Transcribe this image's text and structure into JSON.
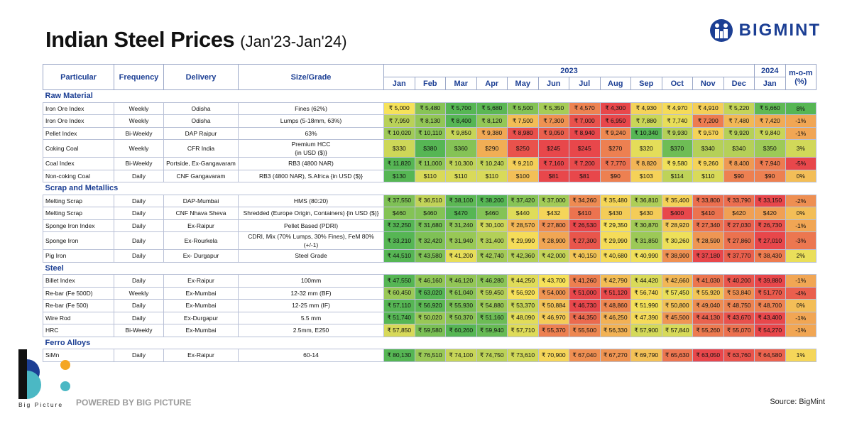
{
  "header": {
    "title": "Indian Steel Prices",
    "subtitle": "(Jan'23-Jan'24)",
    "brand": "BIGMINT"
  },
  "table": {
    "columns": [
      "Particular",
      "Frequency",
      "Delivery",
      "Size/Grade"
    ],
    "years": [
      {
        "label": "2023",
        "span": 12
      },
      {
        "label": "2024",
        "span": 1
      }
    ],
    "months": [
      "Jan",
      "Feb",
      "Mar",
      "Apr",
      "May",
      "Jun",
      "Jul",
      "Aug",
      "Sep",
      "Oct",
      "Nov",
      "Dec",
      "Jan"
    ],
    "mom_header": "m-o-m (%)",
    "sections": [
      {
        "name": "Raw Material",
        "rows": [
          {
            "particular": "Iron Ore Index",
            "frequency": "Weekly",
            "delivery": "Odisha",
            "grade": "Fines (62%)",
            "prices": [
              "₹ 5,000",
              "₹ 5,480",
              "₹ 5,700",
              "₹ 5,680",
              "₹ 5,500",
              "₹ 5,350",
              "₹ 4,570",
              "₹ 4,300",
              "₹ 4,930",
              "₹ 4,970",
              "₹ 4,910",
              "₹ 5,220",
              "₹ 5,660"
            ],
            "mom": "8%"
          },
          {
            "particular": "Iron Ore Index",
            "frequency": "Weekly",
            "delivery": "Odisha",
            "grade": "Lumps (5-18mm, 63%)",
            "prices": [
              "₹ 7,950",
              "₹ 8,130",
              "₹ 8,400",
              "₹ 8,120",
              "₹ 7,500",
              "₹ 7,300",
              "₹ 7,000",
              "₹ 6,950",
              "₹ 7,880",
              "₹ 7,740",
              "₹ 7,200",
              "₹ 7,480",
              "₹ 7,420"
            ],
            "mom": "-1%"
          },
          {
            "particular": "Pellet Index",
            "frequency": "Bi-Weekly",
            "delivery": "DAP Raipur",
            "grade": "63%",
            "prices": [
              "₹ 10,020",
              "₹ 10,110",
              "₹ 9,850",
              "₹ 9,380",
              "₹ 8,980",
              "₹ 9,050",
              "₹ 8,940",
              "₹ 9,240",
              "₹ 10,340",
              "₹ 9,930",
              "₹ 9,570",
              "₹ 9,920",
              "₹ 9,840"
            ],
            "mom": "-1%"
          },
          {
            "particular": "Coking Coal",
            "frequency": "Weekly",
            "delivery": "CFR India",
            "grade": "Premium HCC\n{in USD ($)}",
            "prices": [
              "$330",
              "$380",
              "$360",
              "$290",
              "$250",
              "$245",
              "$245",
              "$270",
              "$320",
              "$370",
              "$340",
              "$340",
              "$350"
            ],
            "mom": "3%"
          },
          {
            "particular": "Coal Index",
            "frequency": "Bi-Weekly",
            "delivery": "Portside, Ex-Gangavaram",
            "grade": "RB3 (4800 NAR)",
            "prices": [
              "₹ 11,820",
              "₹ 11,000",
              "₹ 10,300",
              "₹ 10,240",
              "₹ 9,210",
              "₹ 7,160",
              "₹ 7,200",
              "₹ 7,770",
              "₹ 8,820",
              "₹ 9,580",
              "₹ 9,260",
              "₹ 8,400",
              "₹ 7,940"
            ],
            "mom": "-5%"
          },
          {
            "particular": "Non-coking Coal",
            "frequency": "Daily",
            "delivery": "CNF Gangavaram",
            "grade": "RB3 (4800 NAR), S.Africa {in USD ($)}",
            "prices": [
              "$130",
              "$110",
              "$110",
              "$110",
              "$100",
              "$81",
              "$81",
              "$90",
              "$103",
              "$114",
              "$110",
              "$90",
              "$90"
            ],
            "mom": "0%"
          }
        ]
      },
      {
        "name": "Scrap and Metallics",
        "rows": [
          {
            "particular": "Melting Scrap",
            "frequency": "Daily",
            "delivery": "DAP-Mumbai",
            "grade": "HMS (80:20)",
            "prices": [
              "₹ 37,550",
              "₹ 36,510",
              "₹ 38,100",
              "₹ 38,200",
              "₹ 37,420",
              "₹ 37,000",
              "₹ 34,260",
              "₹ 35,480",
              "₹ 36,810",
              "₹ 35,400",
              "₹ 33,800",
              "₹ 33,790",
              "₹ 33,150"
            ],
            "mom": "-2%"
          },
          {
            "particular": "Melting Scrap",
            "frequency": "Daily",
            "delivery": "CNF Nhava Sheva",
            "grade": "Shredded (Europe Origin, Containers) {in USD ($)}",
            "prices": [
              "$460",
              "$460",
              "$470",
              "$460",
              "$440",
              "$432",
              "$410",
              "$430",
              "$430",
              "$400",
              "$410",
              "$420",
              "$420"
            ],
            "mom": "0%"
          },
          {
            "particular": "Sponge Iron Index",
            "frequency": "Daily",
            "delivery": "Ex-Raipur",
            "grade": "Pellet Based (PDRI)",
            "prices": [
              "₹ 32,250",
              "₹ 31,680",
              "₹ 31,240",
              "₹ 30,100",
              "₹ 28,570",
              "₹ 27,800",
              "₹ 26,530",
              "₹ 29,350",
              "₹ 30,870",
              "₹ 28,920",
              "₹ 27,340",
              "₹ 27,030",
              "₹ 26,730"
            ],
            "mom": "-1%"
          },
          {
            "particular": "Sponge Iron",
            "frequency": "Daily",
            "delivery": "Ex-Rourkela",
            "grade": "CDRI, Mix (70% Lumps, 30% Fines), FeM 80% (+/-1)",
            "prices": [
              "₹ 33,210",
              "₹ 32,420",
              "₹ 31,940",
              "₹ 31,400",
              "₹ 29,990",
              "₹ 28,900",
              "₹ 27,300",
              "₹ 29,990",
              "₹ 31,850",
              "₹ 30,260",
              "₹ 28,590",
              "₹ 27,860",
              "₹ 27,010"
            ],
            "mom": "-3%"
          },
          {
            "particular": "Pig Iron",
            "frequency": "Daily",
            "delivery": "Ex- Durgapur",
            "grade": "Steel Grade",
            "prices": [
              "₹ 44,510",
              "₹ 43,580",
              "₹ 41,200",
              "₹ 42,740",
              "₹ 42,360",
              "₹ 42,000",
              "₹ 40,150",
              "₹ 40,680",
              "₹ 40,990",
              "₹ 38,900",
              "₹ 37,180",
              "₹ 37,770",
              "₹ 38,430"
            ],
            "mom": "2%"
          }
        ]
      },
      {
        "name": "Steel",
        "rows": [
          {
            "particular": "Billet Index",
            "frequency": "Daily",
            "delivery": "Ex-Raipur",
            "grade": "100mm",
            "prices": [
              "₹ 47,550",
              "₹ 46,160",
              "₹ 46,120",
              "₹ 46,280",
              "₹ 44,250",
              "₹ 43,700",
              "₹ 41,260",
              "₹ 42,790",
              "₹ 44,420",
              "₹ 42,660",
              "₹ 41,030",
              "₹ 40,200",
              "₹ 39,880"
            ],
            "mom": "-1%"
          },
          {
            "particular": "Re-bar (Fe 500D)",
            "frequency": "Weekly",
            "delivery": "Ex-Mumbai",
            "grade": "12-32 mm (BF)",
            "prices": [
              "₹ 60,450",
              "₹ 63,020",
              "₹ 61,040",
              "₹ 59,450",
              "₹ 56,920",
              "₹ 54,000",
              "₹ 51,000",
              "₹ 51,120",
              "₹ 56,740",
              "₹ 57,450",
              "₹ 55,920",
              "₹ 53,840",
              "₹ 51,770"
            ],
            "mom": "-4%"
          },
          {
            "particular": "Re-bar (Fe 500)",
            "frequency": "Daily",
            "delivery": "Ex-Mumbai",
            "grade": "12-25 mm (IF)",
            "prices": [
              "₹ 57,110",
              "₹ 56,920",
              "₹ 55,930",
              "₹ 54,880",
              "₹ 53,370",
              "₹ 50,884",
              "₹ 46,730",
              "₹ 48,860",
              "₹ 51,990",
              "₹ 50,800",
              "₹ 49,040",
              "₹ 48,750",
              "₹ 48,700"
            ],
            "mom": "0%"
          },
          {
            "particular": "Wire Rod",
            "frequency": "Daily",
            "delivery": "Ex-Durgapur",
            "grade": "5.5 mm",
            "prices": [
              "₹ 51,740",
              "₹ 50,020",
              "₹ 50,370",
              "₹ 51,160",
              "₹ 48,090",
              "₹ 46,970",
              "₹ 44,350",
              "₹ 46,250",
              "₹ 47,390",
              "₹ 45,500",
              "₹ 44,130",
              "₹ 43,670",
              "₹ 43,400"
            ],
            "mom": "-1%"
          },
          {
            "particular": "HRC",
            "frequency": "Bi-Weekly",
            "delivery": "Ex-Mumbai",
            "grade": "2.5mm, E250",
            "prices": [
              "₹ 57,850",
              "₹ 59,580",
              "₹ 60,260",
              "₹ 59,940",
              "₹ 57,710",
              "₹ 55,370",
              "₹ 55,500",
              "₹ 56,330",
              "₹ 57,900",
              "₹ 57,840",
              "₹ 55,260",
              "₹ 55,070",
              "₹ 54,270"
            ],
            "mom": "-1%"
          }
        ]
      },
      {
        "name": "Ferro Alloys",
        "rows": [
          {
            "particular": "SiMn",
            "frequency": "Daily",
            "delivery": "Ex-Raipur",
            "grade": "60-14",
            "prices": [
              "₹ 80,130",
              "₹ 76,510",
              "₹ 74,100",
              "₹ 74,750",
              "₹ 73,610",
              "₹ 70,900",
              "₹ 67,040",
              "₹ 67,270",
              "₹ 69,790",
              "₹ 65,630",
              "₹ 63,050",
              "₹ 63,760",
              "₹ 64,580"
            ],
            "mom": "1%"
          }
        ]
      }
    ]
  },
  "footer": {
    "logo_text": "Big Picture",
    "powered": "POWERED BY BIG PICTURE",
    "source": "Source: BigMint"
  }
}
